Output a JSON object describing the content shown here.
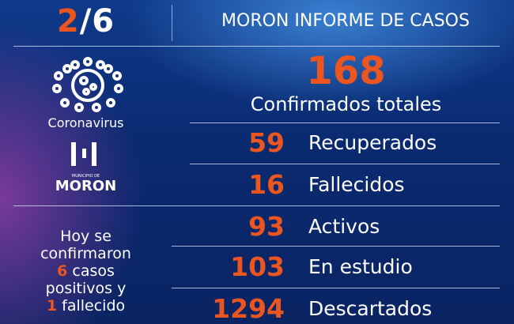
{
  "header": {
    "date_day": "2",
    "date_sep": "/",
    "date_month": "6",
    "title": "MORON INFORME DE CASOS"
  },
  "left": {
    "virus_icon": "coronavirus-icon",
    "virus_label": "Coronavirus",
    "logo_sub": "MUNICIPIO DE",
    "logo_name": "MORON",
    "today": {
      "line1": "Hoy se",
      "line2": "confirmaron",
      "cases_num": "6",
      "cases_text": " casos",
      "line4": "positivos y",
      "deaths_num": "1",
      "deaths_text": " fallecido"
    }
  },
  "total": {
    "value": "168",
    "label": "Confirmados totales"
  },
  "stats": [
    {
      "value": "59",
      "label": "Recuperados"
    },
    {
      "value": "16",
      "label": "Fallecidos"
    },
    {
      "value": "93",
      "label": "Activos"
    },
    {
      "value": "103",
      "label": "En estudio"
    },
    {
      "value": "1294",
      "label": "Descartados"
    }
  ],
  "colors": {
    "accent": "#ea5520",
    "background": "#0a2a70"
  }
}
